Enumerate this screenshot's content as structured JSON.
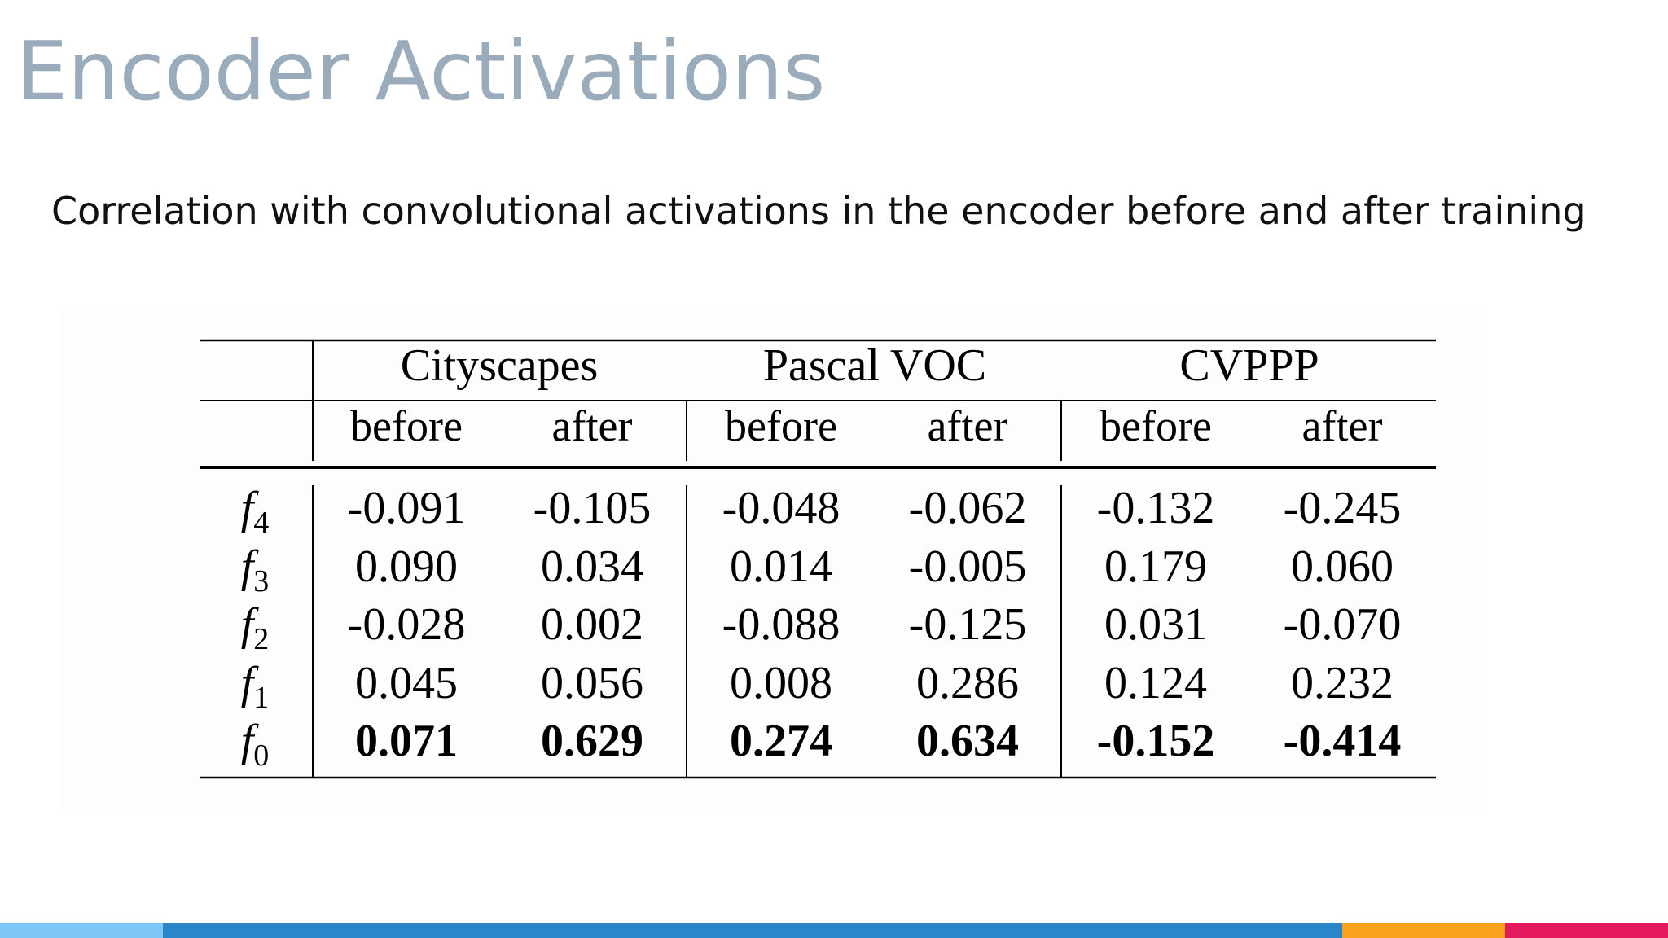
{
  "slide": {
    "title": "Encoder Activations",
    "subtitle": "Correlation with convolutional activations in the encoder before and after training"
  },
  "table": {
    "datasets": [
      "Cityscapes",
      "Pascal VOC",
      "CVPPP"
    ],
    "subheaders": [
      "before",
      "after",
      "before",
      "after",
      "before",
      "after"
    ],
    "rows": [
      {
        "label": "f",
        "sub": "4",
        "values": [
          "-0.091",
          "-0.105",
          "-0.048",
          "-0.062",
          "-0.132",
          "-0.245"
        ],
        "bold": false
      },
      {
        "label": "f",
        "sub": "3",
        "values": [
          "0.090",
          "0.034",
          "0.014",
          "-0.005",
          "0.179",
          "0.060"
        ],
        "bold": false
      },
      {
        "label": "f",
        "sub": "2",
        "values": [
          "-0.028",
          "0.002",
          "-0.088",
          "-0.125",
          "0.031",
          "-0.070"
        ],
        "bold": false
      },
      {
        "label": "f",
        "sub": "1",
        "values": [
          "0.045",
          "0.056",
          "0.008",
          "0.286",
          "0.124",
          "0.232"
        ],
        "bold": false
      },
      {
        "label": "f",
        "sub": "0",
        "values": [
          "0.071",
          "0.629",
          "0.274",
          "0.634",
          "-0.152",
          "-0.414"
        ],
        "bold": true
      }
    ]
  },
  "footer": {
    "colors": [
      "#7dc8f7",
      "#2a86c8",
      "#f7a11d",
      "#e5195f"
    ]
  }
}
